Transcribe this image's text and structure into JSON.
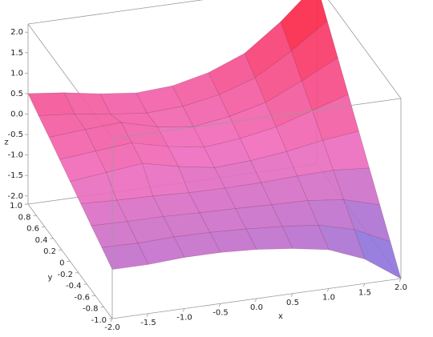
{
  "chart_data": {
    "type": "surface",
    "x_label": "x",
    "y_label": "y",
    "z_label": "z",
    "xlim": [
      -2,
      2
    ],
    "ylim": [
      -1,
      1
    ],
    "zlim": [
      -2.2,
      2.2
    ],
    "xticks": [
      {
        "value": -2,
        "label": "-2.0"
      },
      -1.5,
      {
        "value": -1,
        "label": "-1.0"
      },
      -0.5,
      {
        "value": 0,
        "label": "0.0"
      },
      0.5,
      {
        "value": 1,
        "label": "1.0"
      },
      1.5,
      {
        "value": 2,
        "label": "2.0"
      }
    ],
    "yticks": [
      {
        "value": 1,
        "label": "1.0"
      },
      0.8,
      0.6,
      0.4,
      0.2,
      0,
      -0.2,
      -0.4,
      -0.6,
      -0.8,
      {
        "value": -1,
        "label": "-1.0"
      }
    ],
    "zticks": [
      {
        "value": 2,
        "label": "2.0"
      },
      1.5,
      {
        "value": 1,
        "label": "1.0"
      },
      0.5,
      {
        "value": 0,
        "label": "0.0"
      },
      -0.5,
      {
        "value": -1,
        "label": "-1.0"
      },
      -1.5,
      {
        "value": -2,
        "label": "-2.0"
      }
    ],
    "x": [
      -2,
      -1.5,
      -1,
      -0.5,
      0,
      0.5,
      1,
      1.5,
      2
    ],
    "y": [
      -1,
      -0.75,
      -0.5,
      -0.25,
      0,
      0.25,
      0.5,
      0.75,
      1
    ],
    "z": [
      [
        -1.0,
        -1.0,
        -0.95,
        -0.95,
        -1.0,
        -1.1,
        -1.25,
        -1.6,
        -2.2
      ],
      [
        -0.81,
        -0.83,
        -0.8,
        -0.81,
        -0.85,
        -0.91,
        -1.0,
        -1.23,
        -1.65
      ],
      [
        -0.63,
        -0.65,
        -0.65,
        -0.68,
        -0.7,
        -0.73,
        -0.75,
        -0.85,
        -1.1
      ],
      [
        -0.44,
        -0.48,
        -0.5,
        -0.54,
        -0.55,
        -0.54,
        -0.5,
        -0.48,
        -0.55
      ],
      [
        -0.25,
        -0.15,
        -0.05,
        -0.25,
        -0.4,
        -0.35,
        -0.25,
        -0.1,
        0
      ],
      [
        -0.06,
        0.02,
        0.1,
        -0.11,
        -0.25,
        -0.16,
        0,
        0.28,
        0.55
      ],
      [
        0.13,
        0.2,
        0.25,
        0.02,
        -0.1,
        0.03,
        0.25,
        0.65,
        1.1
      ],
      [
        0.31,
        0.23,
        0.1,
        0.01,
        0.05,
        0.21,
        0.5,
        1.03,
        1.65
      ],
      [
        0.5,
        0.4,
        0.25,
        0.15,
        0.2,
        0.4,
        0.75,
        1.4,
        2.2
      ]
    ]
  }
}
